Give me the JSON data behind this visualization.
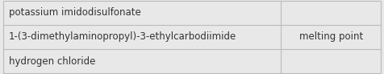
{
  "rows": [
    {
      "left": "potassium imidodisulfonate",
      "right": ""
    },
    {
      "left": "1-(3-dimethylaminopropyl)-3-ethylcarbodiimide",
      "right": "melting point"
    },
    {
      "left": "hydrogen chloride",
      "right": ""
    }
  ],
  "background_color": "#e8e8e8",
  "border_color": "#bbbbbb",
  "text_color": "#333333",
  "font_size": 8.5,
  "col_split": 0.735,
  "figwidth": 4.76,
  "figheight": 0.92,
  "dpi": 100
}
